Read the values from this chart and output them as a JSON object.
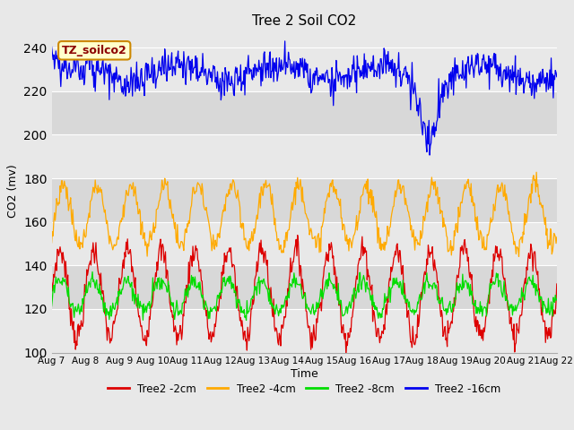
{
  "title": "Tree 2 Soil CO2",
  "ylabel": "CO2 (mv)",
  "xlabel": "Time",
  "legend_label": "TZ_soilco2",
  "ylim": [
    100,
    248
  ],
  "yticks": [
    100,
    120,
    140,
    160,
    180,
    200,
    220,
    240
  ],
  "date_labels": [
    "Aug 7",
    "Aug 8",
    "Aug 9",
    "Aug 10",
    "Aug 11",
    "Aug 12",
    "Aug 13",
    "Aug 14",
    "Aug 15",
    "Aug 16",
    "Aug 17",
    "Aug 18",
    "Aug 19",
    "Aug 20",
    "Aug 21",
    "Aug 22"
  ],
  "line_colors": {
    "2cm": "#dd0000",
    "4cm": "#ffaa00",
    "8cm": "#00dd00",
    "16cm": "#0000ee"
  },
  "legend_entries": [
    "Tree2 -2cm",
    "Tree2 -4cm",
    "Tree2 -8cm",
    "Tree2 -16cm"
  ],
  "legend_colors": [
    "#dd0000",
    "#ffaa00",
    "#00dd00",
    "#0000ee"
  ],
  "bg_color": "#e8e8e8",
  "band_colors_alt": [
    "#e8e8e8",
    "#d8d8d8"
  ],
  "band_ranges": [
    [
      100,
      120
    ],
    [
      120,
      140
    ],
    [
      140,
      160
    ],
    [
      160,
      180
    ],
    [
      180,
      200
    ],
    [
      200,
      220
    ],
    [
      220,
      240
    ]
  ],
  "n_points": 720,
  "days": 15
}
